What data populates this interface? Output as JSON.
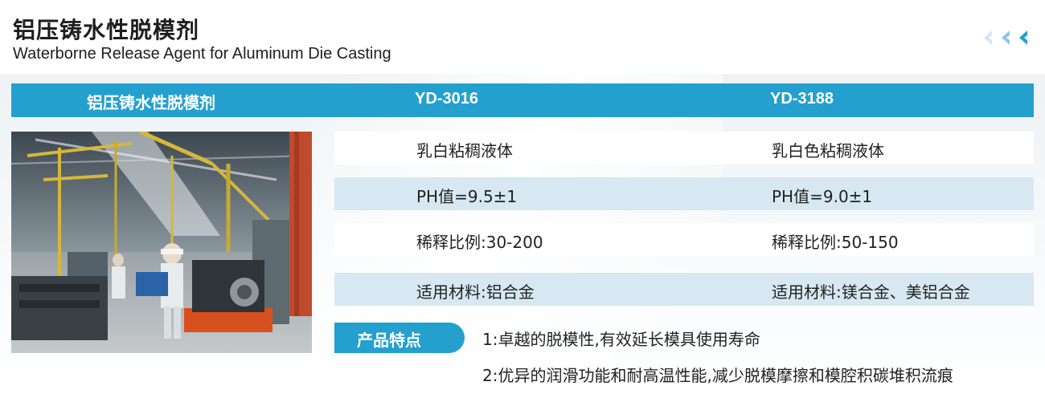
{
  "title": {
    "cn": "铝压铸水性脱模剂",
    "en": "Waterborne Release Agent for Aluminum Die Casting"
  },
  "nav": {
    "icons": [
      "chevron-left-icon",
      "chevron-left-icon",
      "chevron-left-icon"
    ]
  },
  "table": {
    "headers": [
      "铝压铸水性脱模剂",
      "YD-3016",
      "YD-3188"
    ],
    "rows": [
      [
        "乳白粘稠液体",
        "乳白色粘稠液体"
      ],
      [
        "PH值=9.5±1",
        "PH值=9.0±1"
      ],
      [
        "稀释比例:30-200",
        "稀释比例:50-150"
      ],
      [
        "适用材料:铝合金",
        "适用材料:镁合金、美铝合金"
      ]
    ]
  },
  "features": {
    "label": "产品特点",
    "items": [
      "1:卓越的脱模性,有效延长模具使用寿命",
      "2:优异的润滑功能和耐高温性能,减少脱模摩擦和模腔积碳堆积流痕"
    ]
  },
  "colors": {
    "accent": "#24a0cf",
    "row_shade": "#d7e8f2",
    "text": "#222222"
  }
}
